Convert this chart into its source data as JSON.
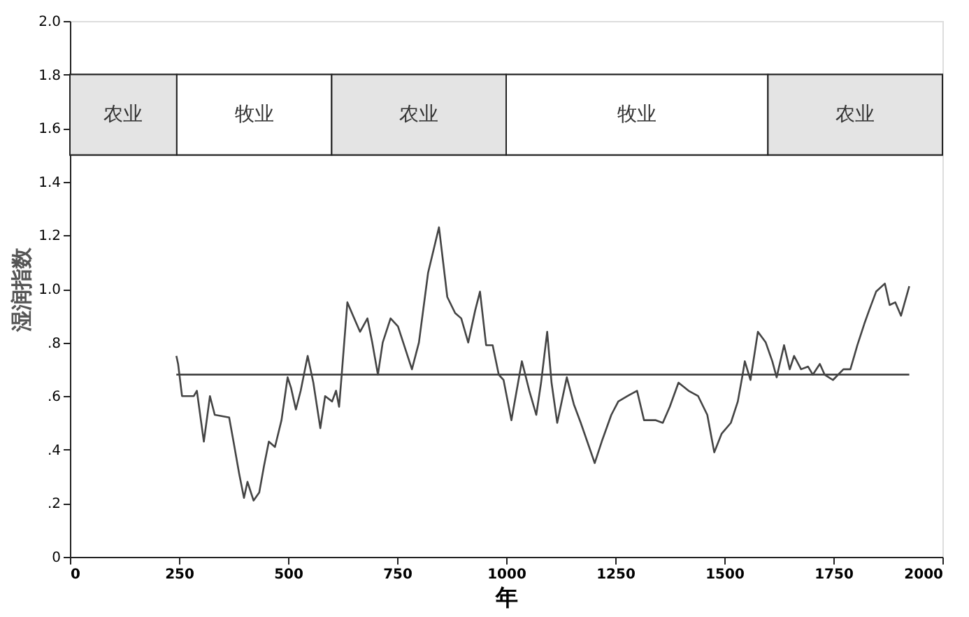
{
  "chart_data": {
    "type": "line",
    "xlabel": "年",
    "ylabel": "湿润指数",
    "x": [
      244,
      248,
      257,
      284,
      291,
      307,
      321,
      332,
      365,
      375,
      388,
      399,
      407,
      421,
      434,
      445,
      456,
      470,
      485,
      499,
      507,
      518,
      529,
      545,
      558,
      574,
      585,
      601,
      610,
      617,
      623,
      636,
      649,
      665,
      682,
      693,
      706,
      717,
      735,
      752,
      784,
      800,
      821,
      846,
      865,
      883,
      897,
      913,
      929,
      940,
      954,
      969,
      983,
      994,
      1012,
      1036,
      1053,
      1069,
      1080,
      1094,
      1104,
      1117,
      1139,
      1155,
      1171,
      1203,
      1219,
      1241,
      1257,
      1278,
      1300,
      1316,
      1343,
      1359,
      1375,
      1395,
      1418,
      1440,
      1461,
      1477,
      1494,
      1515,
      1531,
      1542,
      1547,
      1560,
      1577,
      1595,
      1610,
      1620,
      1637,
      1650,
      1660,
      1676,
      1692,
      1703,
      1719,
      1730,
      1749,
      1773,
      1789,
      1805,
      1821,
      1832,
      1848,
      1868,
      1879,
      1892,
      1905,
      1924
    ],
    "series": [
      {
        "color": "#444444",
        "values": [
          0.75,
          0.72,
          0.6,
          0.6,
          0.62,
          0.43,
          0.6,
          0.53,
          0.52,
          0.43,
          0.31,
          0.22,
          0.28,
          0.21,
          0.24,
          0.34,
          0.43,
          0.41,
          0.51,
          0.67,
          0.63,
          0.55,
          0.62,
          0.75,
          0.65,
          0.48,
          0.6,
          0.58,
          0.62,
          0.56,
          0.68,
          0.95,
          0.9,
          0.84,
          0.89,
          0.8,
          0.68,
          0.8,
          0.89,
          0.86,
          0.7,
          0.8,
          1.06,
          1.23,
          0.97,
          0.91,
          0.89,
          0.8,
          0.92,
          0.99,
          0.79,
          0.79,
          0.68,
          0.66,
          0.51,
          0.73,
          0.62,
          0.53,
          0.65,
          0.84,
          0.65,
          0.5,
          0.67,
          0.57,
          0.5,
          0.35,
          0.43,
          0.53,
          0.58,
          0.6,
          0.62,
          0.51,
          0.51,
          0.5,
          0.56,
          0.65,
          0.62,
          0.6,
          0.53,
          0.39,
          0.46,
          0.5,
          0.58,
          0.68,
          0.73,
          0.66,
          0.84,
          0.8,
          0.73,
          0.67,
          0.79,
          0.7,
          0.75,
          0.7,
          0.71,
          0.68,
          0.72,
          0.68,
          0.66,
          0.7,
          0.7,
          0.79,
          0.87,
          0.92,
          0.99,
          1.02,
          0.94,
          0.95,
          0.9,
          1.01
        ]
      }
    ],
    "ref_lines": [
      {
        "axis": "y",
        "value": 0.68,
        "color": "#333333"
      }
    ],
    "bands": [
      {
        "axis": "y",
        "from": 1.5,
        "to": 1.8,
        "color": "#ffffff"
      },
      {
        "axis": "x",
        "from": 0,
        "to": 245,
        "label": "农业",
        "color": "#e4e4e4"
      },
      {
        "axis": "x",
        "from": 245,
        "to": 600,
        "label": "牧业",
        "color": "#ffffff"
      },
      {
        "axis": "x",
        "from": 600,
        "to": 1000,
        "label": "农业",
        "color": "#e4e4e4"
      },
      {
        "axis": "x",
        "from": 1000,
        "to": 1600,
        "label": "牧业",
        "color": "#ffffff"
      },
      {
        "axis": "x",
        "from": 1600,
        "to": 2000,
        "label": "农业",
        "color": "#e4e4e4"
      }
    ],
    "xlim": [
      0,
      2000
    ],
    "xticks": [
      0,
      250,
      500,
      750,
      1000,
      1250,
      1500,
      1750,
      2000
    ],
    "ylim": [
      0,
      2.0
    ],
    "yticks": [
      {
        "value": 0,
        "label": "0"
      },
      {
        "value": 0.2,
        "label": ".2"
      },
      {
        "value": 0.4,
        "label": ".4"
      },
      {
        "value": 0.6,
        "label": ".6"
      },
      {
        "value": 0.8,
        "label": ".8"
      },
      {
        "value": 1.0,
        "label": "1.0"
      },
      {
        "value": 1.2,
        "label": "1.2"
      },
      {
        "value": 1.4,
        "label": "1.4"
      },
      {
        "value": 1.6,
        "label": "1.6"
      },
      {
        "value": 1.8,
        "label": "1.8"
      },
      {
        "value": 2.0,
        "label": "2.0"
      }
    ],
    "grid": false
  }
}
